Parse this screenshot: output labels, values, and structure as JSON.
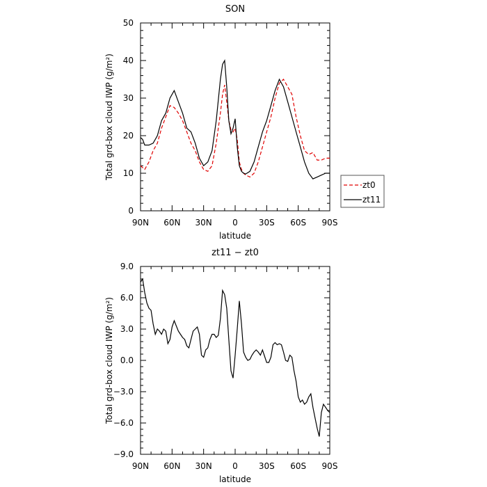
{
  "chart_data": [
    {
      "type": "line",
      "title": "SON",
      "xlabel": "latitude",
      "ylabel": "Total grd-box cloud IWP (g/m²)",
      "xlim": [
        90,
        -90
      ],
      "ylim": [
        0,
        50
      ],
      "yticks": [
        "0",
        "10",
        "20",
        "30",
        "40",
        "50"
      ],
      "xticks": [
        {
          "value": 90,
          "label": "90N"
        },
        {
          "value": 60,
          "label": "60N"
        },
        {
          "value": 30,
          "label": "30N"
        },
        {
          "value": 0,
          "label": "0"
        },
        {
          "value": -30,
          "label": "30S"
        },
        {
          "value": -60,
          "label": "60S"
        },
        {
          "value": -90,
          "label": "90S"
        }
      ],
      "legend": "right",
      "series": [
        {
          "name": "zt0",
          "color": "#e00000",
          "dash": "dashed",
          "x": [
            90,
            86,
            82,
            78,
            74,
            70,
            66,
            62,
            58,
            54,
            50,
            46,
            42,
            38,
            34,
            30,
            26,
            22,
            18,
            14,
            12,
            10,
            8,
            6,
            4,
            2,
            0,
            -2,
            -4,
            -6,
            -8,
            -10,
            -14,
            -18,
            -22,
            -26,
            -30,
            -34,
            -38,
            -42,
            -46,
            -50,
            -54,
            -58,
            -62,
            -66,
            -70,
            -74,
            -78,
            -82,
            -86,
            -90
          ],
          "y": [
            12,
            11,
            13,
            16,
            18,
            22,
            25,
            28,
            27.5,
            26,
            24,
            21,
            18,
            16,
            13,
            11,
            10.5,
            12,
            18,
            26,
            31,
            33.5,
            29,
            24,
            21.5,
            21,
            22,
            19,
            13,
            11,
            10,
            9.5,
            9,
            10,
            13,
            17,
            21,
            25,
            30,
            34,
            35,
            33,
            31,
            25,
            20,
            16,
            15,
            15.5,
            13.5,
            13.5,
            14,
            14
          ]
        },
        {
          "name": "zt11",
          "color": "#000000",
          "dash": "solid",
          "x": [
            90,
            88,
            86,
            82,
            78,
            74,
            70,
            66,
            62,
            58,
            54,
            50,
            46,
            42,
            38,
            34,
            30,
            26,
            22,
            18,
            14,
            12,
            10,
            8,
            6,
            4,
            2,
            0,
            -2,
            -4,
            -6,
            -8,
            -10,
            -14,
            -18,
            -22,
            -26,
            -30,
            -34,
            -38,
            -42,
            -46,
            -50,
            -54,
            -58,
            -62,
            -66,
            -70,
            -74,
            -78,
            -82,
            -86,
            -90
          ],
          "y": [
            19.5,
            19,
            17.5,
            17.5,
            18,
            20,
            24,
            26,
            30,
            32,
            29,
            26,
            22,
            21,
            18,
            14,
            12,
            13,
            16,
            24,
            35,
            39,
            40,
            33,
            24,
            20.5,
            22,
            24.5,
            17,
            12,
            10.5,
            10,
            9.8,
            10.5,
            13,
            17,
            21,
            24,
            28,
            32,
            35,
            33,
            29,
            25,
            21,
            17,
            13,
            10,
            8.5,
            9,
            9.5,
            10,
            10
          ]
        }
      ]
    },
    {
      "type": "line",
      "title": "zt11 − zt0",
      "xlabel": "latitude",
      "ylabel": "Total grd-box cloud IWP (g/m²)",
      "xlim": [
        90,
        -90
      ],
      "ylim": [
        -9,
        9
      ],
      "yticks": [
        "−9.0",
        "−6.0",
        "−3.0",
        "0.0",
        "3.0",
        "6.0",
        "9.0"
      ],
      "xticks": [
        {
          "value": 90,
          "label": "90N"
        },
        {
          "value": 60,
          "label": "60N"
        },
        {
          "value": 30,
          "label": "30N"
        },
        {
          "value": 0,
          "label": "0"
        },
        {
          "value": -30,
          "label": "30S"
        },
        {
          "value": -60,
          "label": "60S"
        },
        {
          "value": -90,
          "label": "90S"
        }
      ],
      "series": [
        {
          "name": "",
          "color": "#000000",
          "dash": "solid",
          "x": [
            90,
            88,
            86,
            84,
            82,
            80,
            78,
            76,
            74,
            72,
            70,
            68,
            66,
            64,
            62,
            60,
            58,
            56,
            54,
            52,
            50,
            48,
            46,
            44,
            42,
            40,
            38,
            36,
            34,
            32,
            30,
            28,
            26,
            24,
            22,
            20,
            18,
            16,
            14,
            12,
            10,
            8,
            6,
            4,
            2,
            0,
            -2,
            -4,
            -6,
            -8,
            -10,
            -12,
            -14,
            -16,
            -18,
            -20,
            -22,
            -24,
            -26,
            -28,
            -30,
            -32,
            -34,
            -36,
            -38,
            -40,
            -42,
            -44,
            -46,
            -48,
            -50,
            -52,
            -54,
            -56,
            -58,
            -60,
            -62,
            -64,
            -66,
            -68,
            -70,
            -72,
            -74,
            -76,
            -78,
            -80,
            -82,
            -84,
            -86,
            -88,
            -90
          ],
          "y": [
            7.5,
            7.8,
            6.5,
            5.5,
            5,
            4.8,
            3.5,
            2.5,
            3,
            2.8,
            2.5,
            3,
            2.8,
            1.6,
            2,
            3.2,
            3.8,
            3.3,
            2.8,
            2.5,
            2.2,
            2,
            1.4,
            1.2,
            2,
            2.8,
            3,
            3.2,
            2.5,
            0.5,
            0.3,
            1,
            1.2,
            2,
            2.5,
            2.5,
            2.2,
            2.4,
            4,
            6.7,
            6.3,
            5,
            2,
            -1,
            -1.7,
            0.5,
            3,
            5.7,
            3.5,
            0.8,
            0.3,
            0,
            0.1,
            0.5,
            0.8,
            1,
            0.8,
            0.5,
            1,
            0.4,
            -0.2,
            -0.2,
            0.3,
            1.5,
            1.7,
            1.5,
            1.6,
            1.5,
            0.8,
            0,
            -0.1,
            0.5,
            0.3,
            -1,
            -2,
            -3.5,
            -4,
            -3.8,
            -4.2,
            -4,
            -3.5,
            -3.2,
            -4.5,
            -5.5,
            -6.5,
            -7.3,
            -5,
            -4.2,
            -4.5,
            -4.8,
            -5
          ]
        }
      ]
    }
  ]
}
